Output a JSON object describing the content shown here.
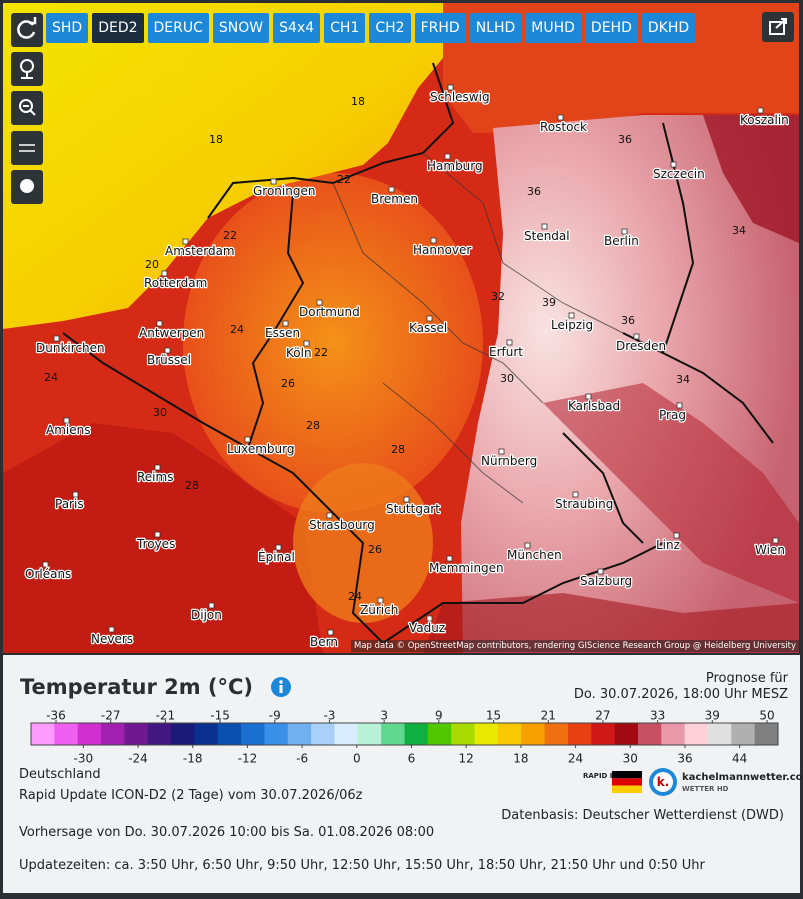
{
  "toolbar": {
    "models": [
      "SHD",
      "DED2",
      "DERUC",
      "SNOW",
      "S4x4",
      "CH1",
      "CH2",
      "FRHD",
      "NLHD",
      "MUHD",
      "DEHD",
      "DKHD"
    ],
    "active": 1
  },
  "map": {
    "cities": [
      "Schleswig",
      "Rostock",
      "Koszalin",
      "Hamburg",
      "Szczecin",
      "Groningen",
      "Bremen",
      "Amsterdam",
      "Stendal",
      "Berlin",
      "Hannover",
      "Rotterdam",
      "Dortmund",
      "Leipzig",
      "Antwerpen",
      "Essen",
      "Kassel",
      "Köln",
      "Erfurt",
      "Dresden",
      "Brüssel",
      "Dunkirchen",
      "Karlsbad",
      "Prag",
      "Amiens",
      "Luxemburg",
      "Nürnberg",
      "Reims",
      "Paris",
      "Stuttgart",
      "Straubing",
      "Strasbourg",
      "Troyes",
      "München",
      "Épinal",
      "Memmingen",
      "Linz",
      "Wien",
      "Salzburg",
      "Orléans",
      "Dijon",
      "Zürich",
      "Vaduz",
      "Nevers",
      "Bern"
    ],
    "temperatures": [
      18,
      18,
      20,
      22,
      22,
      22,
      24,
      24,
      26,
      28,
      28,
      26,
      24,
      30,
      32,
      34,
      36,
      36,
      36,
      39,
      34,
      30,
      28
    ],
    "attribution": "Map data © OpenStreetMap contributors, rendering GIScience Research Group @ Heidelberg University"
  },
  "legend": {
    "title": "Temperatur 2m (°C)",
    "ticks": [
      -36,
      -30,
      -27,
      -24,
      -21,
      -18,
      -15,
      -12,
      -9,
      -6,
      -3,
      0,
      3,
      6,
      9,
      12,
      15,
      18,
      21,
      24,
      27,
      30,
      33,
      36,
      39,
      44,
      50
    ],
    "colors": [
      "#ff9cff",
      "#f060f0",
      "#d030d0",
      "#a020b0",
      "#701890",
      "#401880",
      "#1a1a78",
      "#0a3090",
      "#0a50b0",
      "#1a70d0",
      "#3a90e8",
      "#70b0f0",
      "#a8d0f8",
      "#d8ecff",
      "#b8f0d8",
      "#60d890",
      "#10b040",
      "#50c800",
      "#a8dc00",
      "#e8e800",
      "#f8c800",
      "#f8a000",
      "#f07010",
      "#e84010",
      "#d01818",
      "#a00a10",
      "#c85060",
      "#e898a8",
      "#ffd0d8",
      "#e0e0e0",
      "#b0b0b0",
      "#808080"
    ]
  },
  "forecast": {
    "label": "Prognose für",
    "time": "Do. 30.07.2026, 18:00 Uhr MESZ"
  },
  "info": {
    "region": "Deutschland",
    "model_run": "Rapid Update ICON-D2 (2 Tage) vom 30.07.2026/06z",
    "data_source": "Datenbasis: Deutscher Wetterdienst (DWD)",
    "period": "Vorhersage von Do. 30.07.2026 10:00 bis Sa. 01.08.2026 08:00",
    "update_times": "Updatezeiten: ca. 3:50 Uhr, 6:50 Uhr, 9:50 Uhr, 12:50 Uhr, 15:50 Uhr, 18:50 Uhr, 21:50 Uhr und 0:50 Uhr"
  },
  "logo": {
    "badge": "RAPID ID2",
    "site": "kachelmannwetter.com",
    "tagline": "WETTER HD"
  }
}
